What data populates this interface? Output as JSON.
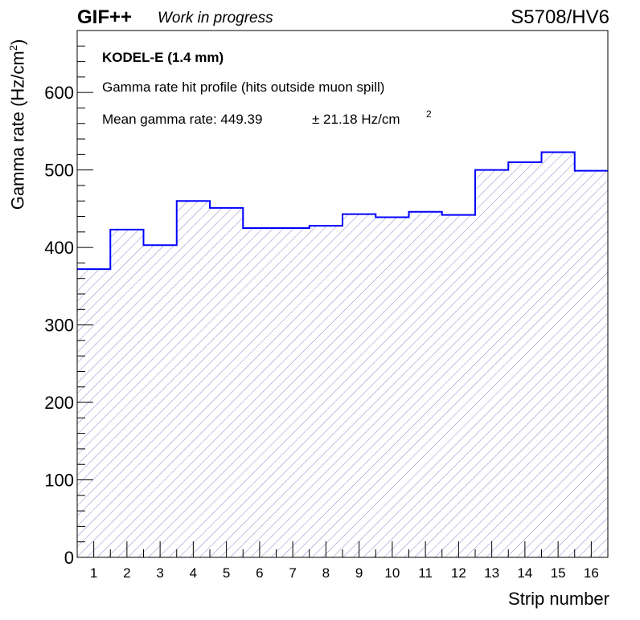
{
  "header": {
    "brand": "GIF++",
    "subtitle": "Work in progress",
    "run_label": "S5708/HV6"
  },
  "annotations": {
    "detector": "KODEL-E (1.4 mm)",
    "description": "Gamma rate hit profile (hits outside muon spill)",
    "mean_prefix": "Mean gamma rate: 449.39",
    "mean_error": "± 21.18 Hz/cm",
    "mean_exponent": "2"
  },
  "chart_data": {
    "type": "bar",
    "style": "step-histogram",
    "title": "",
    "xlabel": "Strip number",
    "ylabel_main": "Gamma rate (Hz/cm",
    "ylabel_sup": "2",
    "ylabel_close": ")",
    "categories": [
      "1",
      "2",
      "3",
      "4",
      "5",
      "6",
      "7",
      "8",
      "9",
      "10",
      "11",
      "12",
      "13",
      "14",
      "15",
      "16"
    ],
    "values": [
      372,
      423,
      403,
      460,
      451,
      425,
      425,
      428,
      443,
      439,
      446,
      442,
      500,
      510,
      523,
      499
    ],
    "ylim": [
      0,
      680
    ],
    "yticks": [
      0,
      100,
      200,
      300,
      400,
      500,
      600
    ],
    "xlim": [
      0.5,
      16.5
    ],
    "grid": false,
    "line_color": "#0000ff",
    "fill_hatch_color": "#8b86c8"
  }
}
